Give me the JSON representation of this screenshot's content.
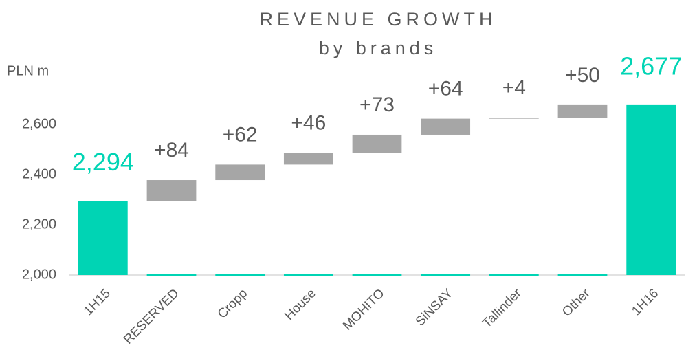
{
  "chart_data": {
    "type": "waterfall",
    "title": "REVENUE GROWTH",
    "subtitle": "by brands",
    "y_axis_label": "PLN m",
    "categories": [
      "1H15",
      "RESERVED",
      "Cropp",
      "House",
      "MOHITO",
      "SiNSAY",
      "Tallinder",
      "Other",
      "1H16"
    ],
    "values": [
      2294,
      84,
      62,
      46,
      73,
      64,
      4,
      50,
      2677
    ],
    "value_labels": [
      "2,294",
      "+84",
      "+62",
      "+46",
      "+73",
      "+64",
      "+4",
      "+50",
      "2,677"
    ],
    "is_total": [
      true,
      false,
      false,
      false,
      false,
      false,
      false,
      false,
      true
    ],
    "total_color": "#00d4b4",
    "delta_color": "#a6a6a6",
    "ylim": [
      2000,
      2800
    ],
    "yticks": [
      {
        "value": 2000,
        "label": "2,000"
      },
      {
        "value": 2200,
        "label": "2,200"
      },
      {
        "value": 2400,
        "label": "2,400"
      },
      {
        "value": 2600,
        "label": "2,600"
      }
    ],
    "grid": false
  }
}
